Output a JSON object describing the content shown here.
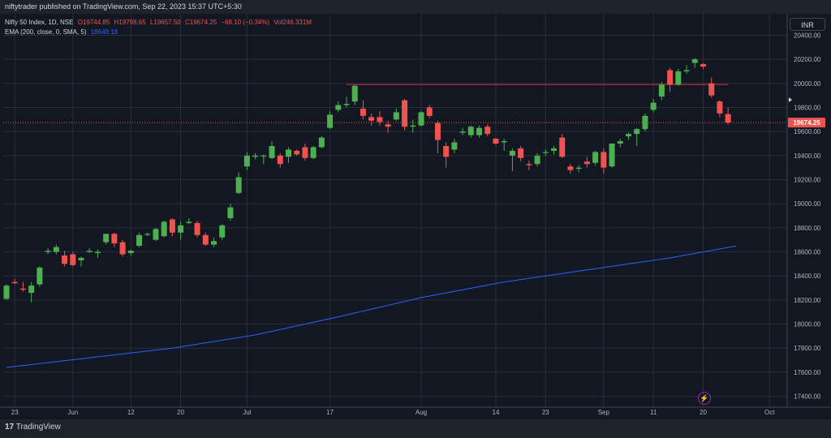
{
  "header": {
    "published_line": "niftytrader published on TradingView.com, Sep 22, 2023 15:37 UTC+5:30"
  },
  "legend": {
    "symbol": "Nifty 50 Index, 1D, NSE",
    "open": "O19744.85",
    "high": "H19798.65",
    "low": "L19657.50",
    "close": "C19674.25",
    "change": "−68.10 (−0.34%)",
    "volume": "Vol246.331M",
    "indicator": "EMA (200, close, 0, SMA, 5)",
    "indicator_value": "18649.18"
  },
  "currency_label": "INR",
  "footer": {
    "logo_text": "TradingView"
  },
  "colors": {
    "background": "#131722",
    "up": "#4caf50",
    "down": "#ef5350",
    "ema": "#2962ff",
    "resistance": "#b22833",
    "price_tag": "#ef5350"
  },
  "chart_data": {
    "type": "candlestick",
    "title": "Nifty 50 Index, 1D, NSE",
    "y_ticks": [
      17400,
      17600,
      17800,
      18000,
      18200,
      18400,
      18600,
      18800,
      19000,
      19200,
      19400,
      19600,
      19800,
      20000,
      20200,
      20400
    ],
    "y_tick_labels": [
      "17400.00",
      "17600.00",
      "17800.00",
      "18000.00",
      "18200.00",
      "18400.00",
      "18600.00",
      "18800.00",
      "19000.00",
      "19200.00",
      "19400.00",
      "19600.00",
      "19800.00",
      "20000.00",
      "20200.00",
      "20400.00"
    ],
    "ylim": [
      17350,
      20430
    ],
    "x_labels": [
      {
        "index": 1,
        "label": "23"
      },
      {
        "index": 8,
        "label": "Jun"
      },
      {
        "index": 15,
        "label": "12"
      },
      {
        "index": 21,
        "label": "20"
      },
      {
        "index": 29,
        "label": "Jul"
      },
      {
        "index": 39,
        "label": "17"
      },
      {
        "index": 50,
        "label": "Aug"
      },
      {
        "index": 59,
        "label": "14"
      },
      {
        "index": 65,
        "label": "23"
      },
      {
        "index": 72,
        "label": "Sep"
      },
      {
        "index": 78,
        "label": "11"
      },
      {
        "index": 84,
        "label": "20"
      },
      {
        "index": 92,
        "label": "Oct"
      }
    ],
    "candles": [
      {
        "o": 18210,
        "h": 18330,
        "l": 18200,
        "c": 18320
      },
      {
        "o": 18350,
        "h": 18375,
        "l": 18330,
        "c": 18340
      },
      {
        "o": 18295,
        "h": 18350,
        "l": 18270,
        "c": 18285
      },
      {
        "o": 18260,
        "h": 18350,
        "l": 18180,
        "c": 18320
      },
      {
        "o": 18330,
        "h": 18480,
        "l": 18310,
        "c": 18470
      },
      {
        "o": 18600,
        "h": 18630,
        "l": 18580,
        "c": 18610
      },
      {
        "o": 18600,
        "h": 18660,
        "l": 18580,
        "c": 18640
      },
      {
        "o": 18570,
        "h": 18610,
        "l": 18480,
        "c": 18500
      },
      {
        "o": 18580,
        "h": 18600,
        "l": 18480,
        "c": 18490
      },
      {
        "o": 18530,
        "h": 18560,
        "l": 18480,
        "c": 18550
      },
      {
        "o": 18600,
        "h": 18630,
        "l": 18590,
        "c": 18610
      },
      {
        "o": 18590,
        "h": 18620,
        "l": 18550,
        "c": 18600
      },
      {
        "o": 18680,
        "h": 18730,
        "l": 18660,
        "c": 18750
      },
      {
        "o": 18750,
        "h": 18760,
        "l": 18640,
        "c": 18670
      },
      {
        "o": 18680,
        "h": 18700,
        "l": 18560,
        "c": 18580
      },
      {
        "o": 18590,
        "h": 18620,
        "l": 18570,
        "c": 18610
      },
      {
        "o": 18650,
        "h": 18760,
        "l": 18640,
        "c": 18740
      },
      {
        "o": 18750,
        "h": 18760,
        "l": 18730,
        "c": 18750
      },
      {
        "o": 18700,
        "h": 18800,
        "l": 18690,
        "c": 18790
      },
      {
        "o": 18730,
        "h": 18860,
        "l": 18720,
        "c": 18850
      },
      {
        "o": 18870,
        "h": 18880,
        "l": 18730,
        "c": 18760
      },
      {
        "o": 18760,
        "h": 18850,
        "l": 18700,
        "c": 18820
      },
      {
        "o": 18840,
        "h": 18880,
        "l": 18830,
        "c": 18850
      },
      {
        "o": 18840,
        "h": 18860,
        "l": 18720,
        "c": 18740
      },
      {
        "o": 18740,
        "h": 18760,
        "l": 18650,
        "c": 18660
      },
      {
        "o": 18660,
        "h": 18720,
        "l": 18640,
        "c": 18690
      },
      {
        "o": 18720,
        "h": 18830,
        "l": 18700,
        "c": 18820
      },
      {
        "o": 18880,
        "h": 19000,
        "l": 18860,
        "c": 18970
      },
      {
        "o": 19090,
        "h": 19260,
        "l": 19080,
        "c": 19220
      },
      {
        "o": 19310,
        "h": 19430,
        "l": 19280,
        "c": 19400
      },
      {
        "o": 19390,
        "h": 19420,
        "l": 19370,
        "c": 19400
      },
      {
        "o": 19400,
        "h": 19410,
        "l": 19330,
        "c": 19400
      },
      {
        "o": 19380,
        "h": 19520,
        "l": 19370,
        "c": 19480
      },
      {
        "o": 19400,
        "h": 19420,
        "l": 19300,
        "c": 19330
      },
      {
        "o": 19390,
        "h": 19470,
        "l": 19340,
        "c": 19450
      },
      {
        "o": 19440,
        "h": 19450,
        "l": 19400,
        "c": 19410
      },
      {
        "o": 19470,
        "h": 19500,
        "l": 19360,
        "c": 19380
      },
      {
        "o": 19380,
        "h": 19480,
        "l": 19370,
        "c": 19470
      },
      {
        "o": 19470,
        "h": 19560,
        "l": 19460,
        "c": 19550
      },
      {
        "o": 19630,
        "h": 19770,
        "l": 19620,
        "c": 19740
      },
      {
        "o": 19780,
        "h": 19850,
        "l": 19760,
        "c": 19820
      },
      {
        "o": 19820,
        "h": 19890,
        "l": 19800,
        "c": 19830
      },
      {
        "o": 19850,
        "h": 19990,
        "l": 19820,
        "c": 19980
      },
      {
        "o": 19790,
        "h": 19860,
        "l": 19700,
        "c": 19730
      },
      {
        "o": 19720,
        "h": 19750,
        "l": 19650,
        "c": 19690
      },
      {
        "o": 19720,
        "h": 19770,
        "l": 19650,
        "c": 19680
      },
      {
        "o": 19660,
        "h": 19690,
        "l": 19590,
        "c": 19640
      },
      {
        "o": 19700,
        "h": 19790,
        "l": 19690,
        "c": 19760
      },
      {
        "o": 19860,
        "h": 19870,
        "l": 19610,
        "c": 19640
      },
      {
        "o": 19640,
        "h": 19700,
        "l": 19590,
        "c": 19650
      },
      {
        "o": 19650,
        "h": 19770,
        "l": 19640,
        "c": 19760
      },
      {
        "o": 19800,
        "h": 19820,
        "l": 19710,
        "c": 19730
      },
      {
        "o": 19670,
        "h": 19690,
        "l": 19420,
        "c": 19530
      },
      {
        "o": 19480,
        "h": 19510,
        "l": 19300,
        "c": 19390
      },
      {
        "o": 19450,
        "h": 19540,
        "l": 19420,
        "c": 19510
      },
      {
        "o": 19590,
        "h": 19630,
        "l": 19570,
        "c": 19600
      },
      {
        "o": 19570,
        "h": 19650,
        "l": 19550,
        "c": 19640
      },
      {
        "o": 19570,
        "h": 19650,
        "l": 19550,
        "c": 19630
      },
      {
        "o": 19640,
        "h": 19660,
        "l": 19560,
        "c": 19580
      },
      {
        "o": 19540,
        "h": 19550,
        "l": 19490,
        "c": 19500
      },
      {
        "o": 19510,
        "h": 19540,
        "l": 19440,
        "c": 19520
      },
      {
        "o": 19400,
        "h": 19460,
        "l": 19270,
        "c": 19440
      },
      {
        "o": 19460,
        "h": 19480,
        "l": 19350,
        "c": 19380
      },
      {
        "o": 19330,
        "h": 19360,
        "l": 19280,
        "c": 19320
      },
      {
        "o": 19330,
        "h": 19420,
        "l": 19310,
        "c": 19400
      },
      {
        "o": 19430,
        "h": 19450,
        "l": 19400,
        "c": 19430
      },
      {
        "o": 19440,
        "h": 19480,
        "l": 19410,
        "c": 19460
      },
      {
        "o": 19550,
        "h": 19580,
        "l": 19380,
        "c": 19390
      },
      {
        "o": 19310,
        "h": 19330,
        "l": 19250,
        "c": 19280
      },
      {
        "o": 19290,
        "h": 19320,
        "l": 19260,
        "c": 19300
      },
      {
        "o": 19350,
        "h": 19390,
        "l": 19300,
        "c": 19330
      },
      {
        "o": 19340,
        "h": 19440,
        "l": 19320,
        "c": 19430
      },
      {
        "o": 19430,
        "h": 19460,
        "l": 19250,
        "c": 19300
      },
      {
        "o": 19310,
        "h": 19500,
        "l": 19300,
        "c": 19500
      },
      {
        "o": 19500,
        "h": 19540,
        "l": 19470,
        "c": 19520
      },
      {
        "o": 19560,
        "h": 19590,
        "l": 19530,
        "c": 19580
      },
      {
        "o": 19580,
        "h": 19630,
        "l": 19480,
        "c": 19620
      },
      {
        "o": 19620,
        "h": 19750,
        "l": 19600,
        "c": 19730
      },
      {
        "o": 19780,
        "h": 19870,
        "l": 19760,
        "c": 19840
      },
      {
        "o": 19890,
        "h": 20010,
        "l": 19860,
        "c": 19990
      },
      {
        "o": 20110,
        "h": 20130,
        "l": 19930,
        "c": 19990
      },
      {
        "o": 19990,
        "h": 20120,
        "l": 19980,
        "c": 20100
      },
      {
        "o": 20100,
        "h": 20150,
        "l": 20080,
        "c": 20110
      },
      {
        "o": 20170,
        "h": 20210,
        "l": 20130,
        "c": 20200
      },
      {
        "o": 20160,
        "h": 20170,
        "l": 20120,
        "c": 20140
      },
      {
        "o": 20000,
        "h": 20050,
        "l": 19880,
        "c": 19900
      },
      {
        "o": 19850,
        "h": 19860,
        "l": 19720,
        "c": 19750
      },
      {
        "o": 19744.85,
        "h": 19798.65,
        "l": 19657.5,
        "c": 19674.25
      }
    ],
    "ema_points": [
      [
        0,
        17640
      ],
      [
        10,
        17720
      ],
      [
        20,
        17800
      ],
      [
        30,
        17910
      ],
      [
        40,
        18060
      ],
      [
        50,
        18220
      ],
      [
        60,
        18350
      ],
      [
        70,
        18450
      ],
      [
        80,
        18550
      ],
      [
        88,
        18649.18
      ]
    ],
    "resistance": {
      "value": 19990,
      "from_index": 41,
      "to_index": 87
    },
    "last_price": 19674.25,
    "last_price_label": "19674.25"
  }
}
